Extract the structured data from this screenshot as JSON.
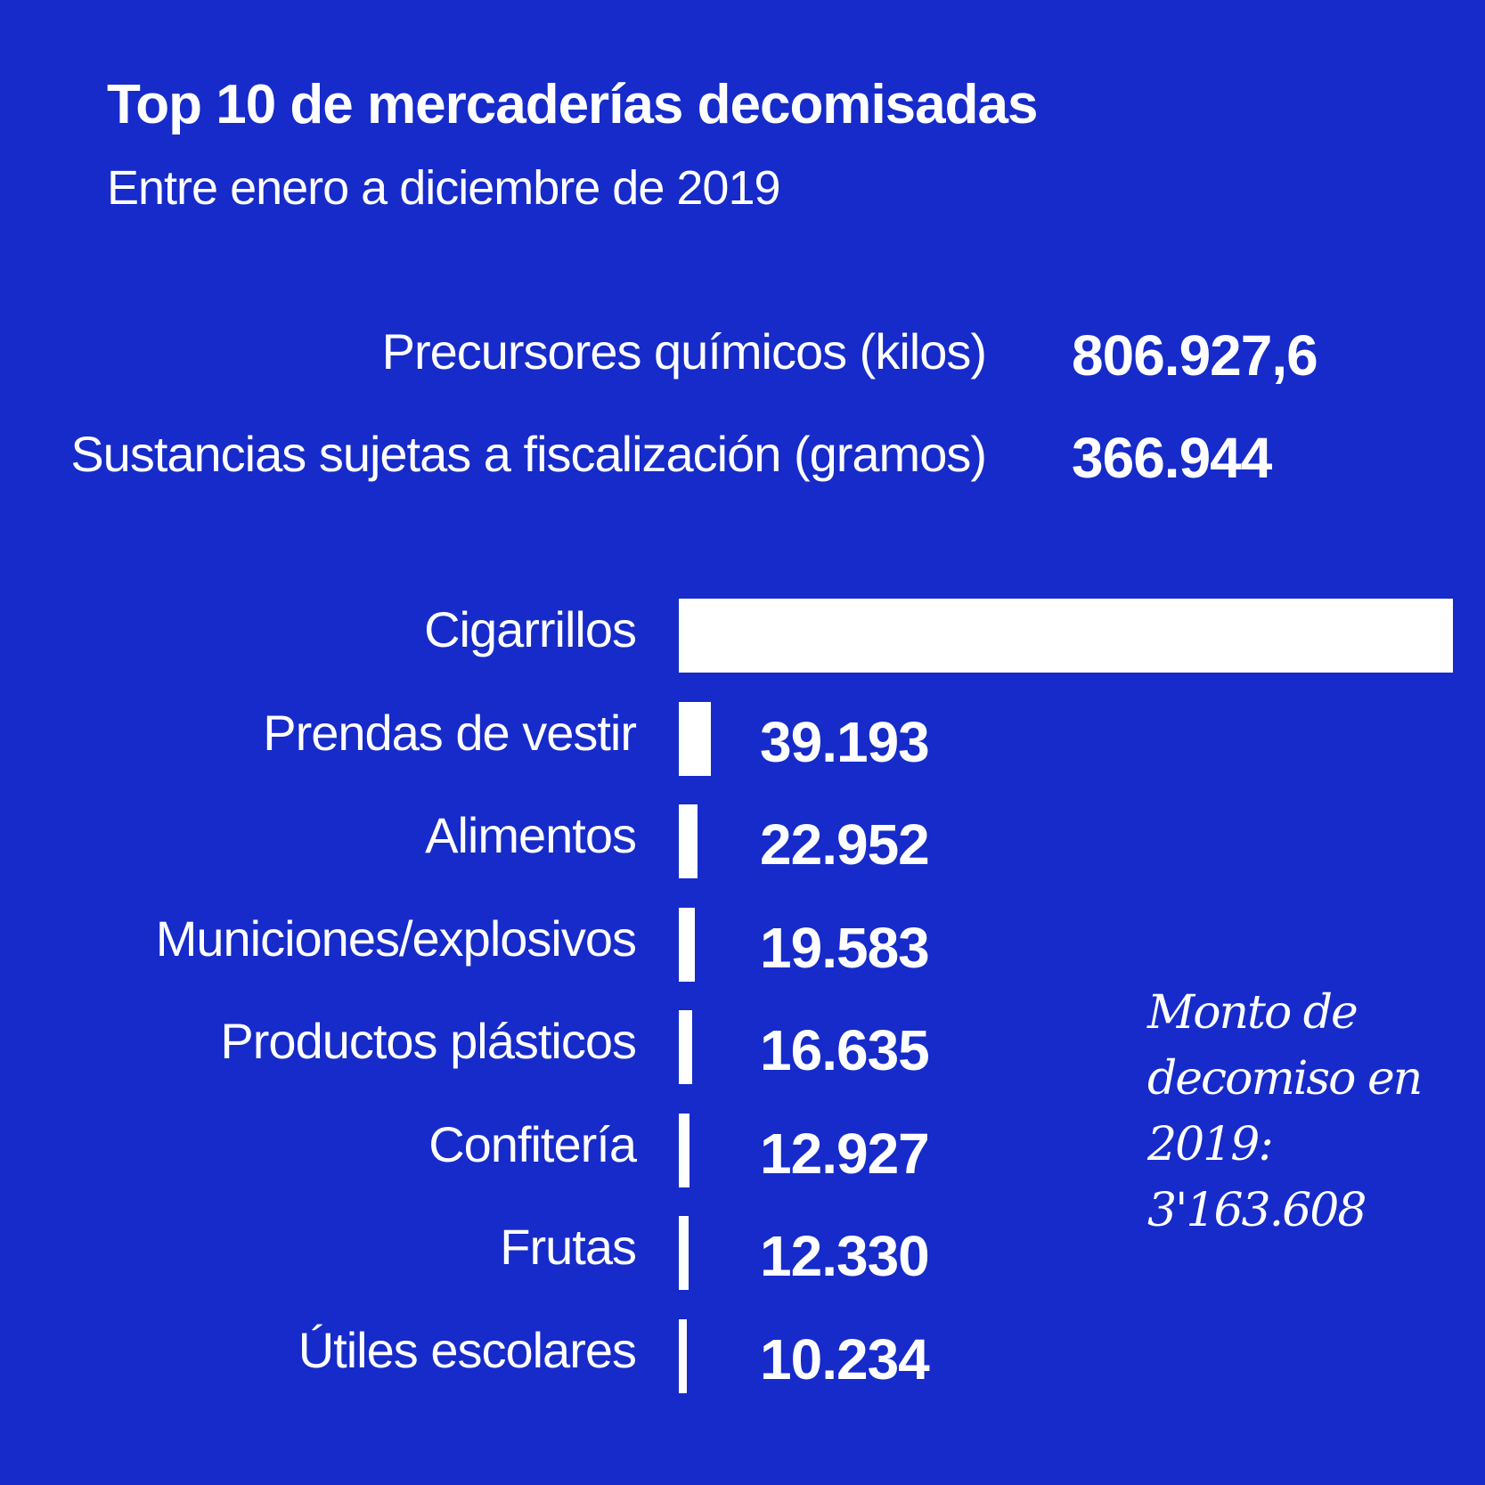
{
  "header": {
    "title": "Top 10 de mercaderías decomisadas",
    "subtitle": "Entre enero a diciembre de 2019"
  },
  "stats": [
    {
      "label": "Precursores químicos (kilos)",
      "value": "806.927,6"
    },
    {
      "label": "Sustancias sujetas a fiscalización (gramos)",
      "value": "366.944"
    }
  ],
  "note": "Monto de decomiso en 2019: 3'163.608",
  "chart_data": {
    "type": "bar",
    "orientation": "horizontal",
    "categories": [
      "Cigarrillos",
      "Prendas de vestir",
      "Alimentos",
      "Municiones/explosivos",
      "Productos plásticos",
      "Confitería",
      "Frutas",
      "Útiles escolares"
    ],
    "values": [
      946000,
      39193,
      22952,
      19583,
      16635,
      12927,
      12330,
      10234
    ],
    "value_labels": [
      "",
      "39.193",
      "22.952",
      "19.583",
      "16.635",
      "12.927",
      "12.330",
      "10.234"
    ],
    "bar_color": "#ffffff",
    "background": "#162bc9"
  }
}
